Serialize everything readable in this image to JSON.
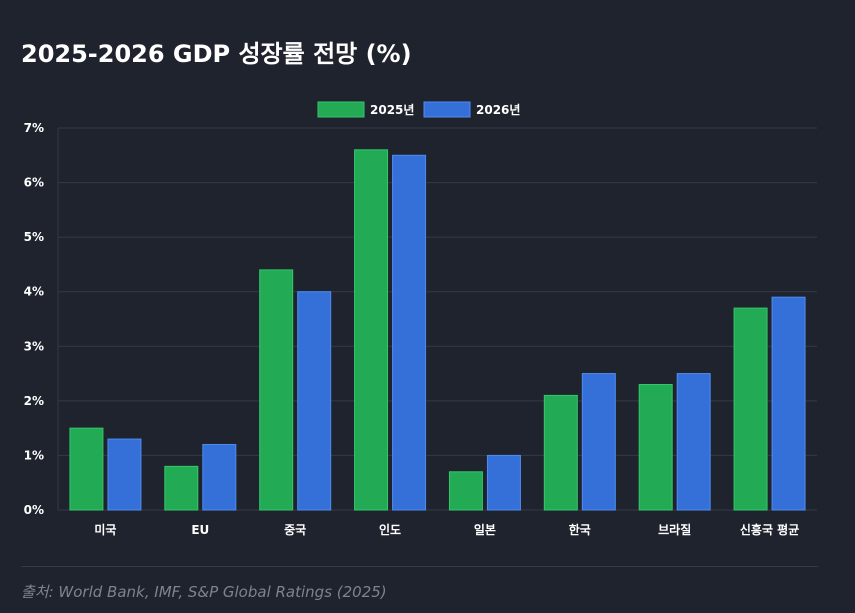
{
  "title": "2025-2026 GDP 성장률 전망 (%)",
  "source": "출처: World Bank, IMF, S&P Global Ratings (2025)",
  "colors": {
    "background": "#1f232d",
    "grid": "#343a46",
    "text": "#ffffff",
    "series_2025": "#22aa55",
    "series_2025_border": "#35c76b",
    "series_2026": "#3470d8",
    "series_2026_border": "#4f8cf0"
  },
  "chart_data": {
    "type": "bar",
    "title": "2025-2026 GDP 성장률 전망 (%)",
    "categories": [
      "미국",
      "EU",
      "중국",
      "인도",
      "일본",
      "한국",
      "브라질",
      "신흥국 평균"
    ],
    "series": [
      {
        "name": "2025년",
        "values": [
          1.5,
          0.8,
          4.4,
          6.6,
          0.7,
          2.1,
          2.3,
          3.7
        ]
      },
      {
        "name": "2026년",
        "values": [
          1.3,
          1.2,
          4.0,
          6.5,
          1.0,
          2.5,
          2.5,
          3.9
        ]
      }
    ],
    "ylim": [
      0,
      7
    ],
    "yticks": [
      "0%",
      "1%",
      "2%",
      "3%",
      "4%",
      "5%",
      "6%",
      "7%"
    ],
    "xlabel": "",
    "ylabel": "",
    "grid": true,
    "legend": "top-center"
  }
}
